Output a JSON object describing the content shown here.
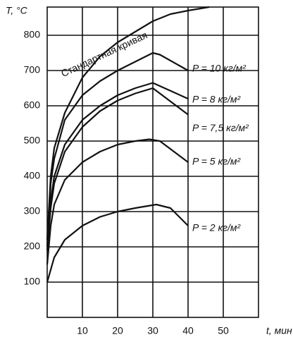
{
  "chart_data": {
    "type": "line",
    "y_label": "T, °C",
    "x_label": "t, мин",
    "xlim": [
      0,
      60
    ],
    "ylim": [
      0,
      880
    ],
    "xticks": [
      10,
      20,
      30,
      40,
      50
    ],
    "yticks": [
      100,
      200,
      300,
      400,
      500,
      600,
      700,
      800
    ],
    "grid": true,
    "series": [
      {
        "name": "Стандартная кривая",
        "color": "#111111",
        "x": [
          0,
          1,
          2,
          5,
          10,
          15,
          20,
          25,
          30,
          35,
          40,
          46
        ],
        "values": [
          220,
          400,
          480,
          580,
          680,
          740,
          780,
          810,
          840,
          860,
          870,
          880
        ]
      },
      {
        "name": "P = 10 кг/м²",
        "color": "#111111",
        "x": [
          0,
          1,
          2,
          5,
          10,
          15,
          20,
          25,
          30,
          32,
          40
        ],
        "values": [
          200,
          380,
          450,
          560,
          630,
          670,
          700,
          725,
          750,
          745,
          700
        ]
      },
      {
        "name": "P = 8 кг/м²",
        "color": "#111111",
        "x": [
          0,
          1,
          2,
          5,
          10,
          15,
          20,
          25,
          30,
          40
        ],
        "values": [
          200,
          330,
          400,
          490,
          560,
          600,
          630,
          650,
          665,
          620
        ]
      },
      {
        "name": "P = 7,5 кг/м²",
        "color": "#111111",
        "x": [
          0,
          1,
          2,
          5,
          10,
          15,
          20,
          25,
          30,
          40
        ],
        "values": [
          190,
          310,
          380,
          470,
          540,
          585,
          615,
          635,
          650,
          575
        ]
      },
      {
        "name": "P = 5 кг/м²",
        "color": "#111111",
        "x": [
          0,
          1,
          2,
          5,
          10,
          15,
          20,
          25,
          29,
          32,
          40
        ],
        "values": [
          150,
          260,
          320,
          390,
          440,
          470,
          490,
          500,
          505,
          500,
          440
        ]
      },
      {
        "name": "P = 2 кг/м²",
        "color": "#111111",
        "x": [
          0,
          2,
          5,
          10,
          15,
          20,
          25,
          31,
          35,
          40
        ],
        "values": [
          100,
          170,
          220,
          260,
          285,
          300,
          310,
          320,
          310,
          260
        ]
      }
    ]
  }
}
